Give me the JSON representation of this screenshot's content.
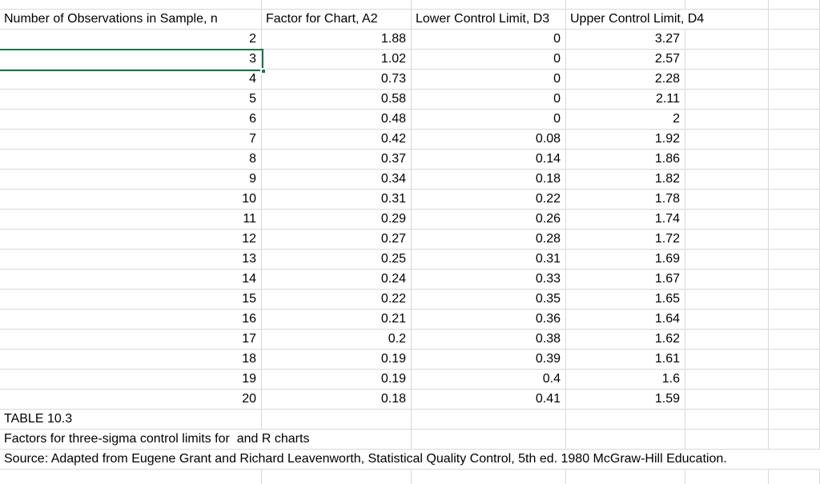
{
  "colors": {
    "selection_border": "#217346",
    "gridline": "#d9d9d9",
    "background": "#ffffff",
    "text": "#000000"
  },
  "selection": {
    "selected_cell_value": "3",
    "selected_column": "Number of Observations in Sample, n"
  },
  "table": {
    "columns": {
      "n": "Number of Observations in Sample, n",
      "a2": "Factor for Chart, A2",
      "d3": "Lower Control Limit, D3",
      "d4": "Upper Control Limit, D4"
    },
    "rows": [
      {
        "n": "2",
        "a2": "1.88",
        "d3": "0",
        "d4": "3.27"
      },
      {
        "n": "3",
        "a2": "1.02",
        "d3": "0",
        "d4": "2.57"
      },
      {
        "n": "4",
        "a2": "0.73",
        "d3": "0",
        "d4": "2.28"
      },
      {
        "n": "5",
        "a2": "0.58",
        "d3": "0",
        "d4": "2.11"
      },
      {
        "n": "6",
        "a2": "0.48",
        "d3": "0",
        "d4": "2"
      },
      {
        "n": "7",
        "a2": "0.42",
        "d3": "0.08",
        "d4": "1.92"
      },
      {
        "n": "8",
        "a2": "0.37",
        "d3": "0.14",
        "d4": "1.86"
      },
      {
        "n": "9",
        "a2": "0.34",
        "d3": "0.18",
        "d4": "1.82"
      },
      {
        "n": "10",
        "a2": "0.31",
        "d3": "0.22",
        "d4": "1.78"
      },
      {
        "n": "11",
        "a2": "0.29",
        "d3": "0.26",
        "d4": "1.74"
      },
      {
        "n": "12",
        "a2": "0.27",
        "d3": "0.28",
        "d4": "1.72"
      },
      {
        "n": "13",
        "a2": "0.25",
        "d3": "0.31",
        "d4": "1.69"
      },
      {
        "n": "14",
        "a2": "0.24",
        "d3": "0.33",
        "d4": "1.67"
      },
      {
        "n": "15",
        "a2": "0.22",
        "d3": "0.35",
        "d4": "1.65"
      },
      {
        "n": "16",
        "a2": "0.21",
        "d3": "0.36",
        "d4": "1.64"
      },
      {
        "n": "17",
        "a2": "0.2",
        "d3": "0.38",
        "d4": "1.62"
      },
      {
        "n": "18",
        "a2": "0.19",
        "d3": "0.39",
        "d4": "1.61"
      },
      {
        "n": "19",
        "a2": "0.19",
        "d3": "0.4",
        "d4": "1.6"
      },
      {
        "n": "20",
        "a2": "0.18",
        "d3": "0.41",
        "d4": "1.59"
      }
    ]
  },
  "footer": {
    "table_label": "TABLE 10.3",
    "caption": "Factors for three-sigma control limits for  and R charts",
    "source": "Source: Adapted from Eugene Grant and Richard Leavenworth, Statistical Quality Control, 5th ed. 1980 McGraw-Hill Education."
  }
}
